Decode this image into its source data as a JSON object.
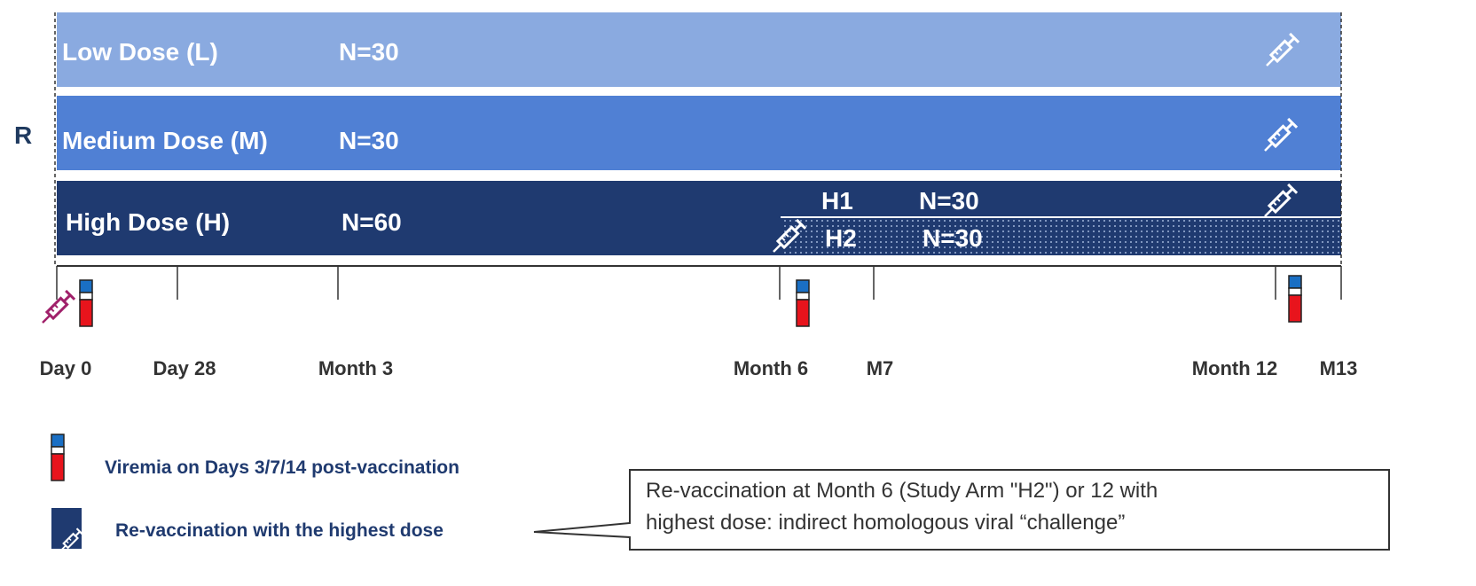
{
  "randomization": "R",
  "arms": [
    {
      "label": "Low Dose (L)",
      "n": "N=30"
    },
    {
      "label": "Medium Dose (M)",
      "n": "N=30"
    },
    {
      "label": "High Dose (H)",
      "n": "N=60"
    }
  ],
  "subarms": [
    {
      "label": "H1",
      "n": "N=30"
    },
    {
      "label": "H2",
      "n": "N=30"
    }
  ],
  "timeline": [
    "Day 0",
    "Day 28",
    "Month 3",
    "Month 6",
    "M7",
    "Month 12",
    "M13"
  ],
  "legend": [
    "Viremia on Days 3/7/14 post-vaccination",
    "Re-vaccination with the highest dose"
  ],
  "callout": [
    "Re-vaccination at Month 6 (Study Arm \"H2\") or 12 with",
    "highest dose: indirect homologous viral “challenge”"
  ]
}
